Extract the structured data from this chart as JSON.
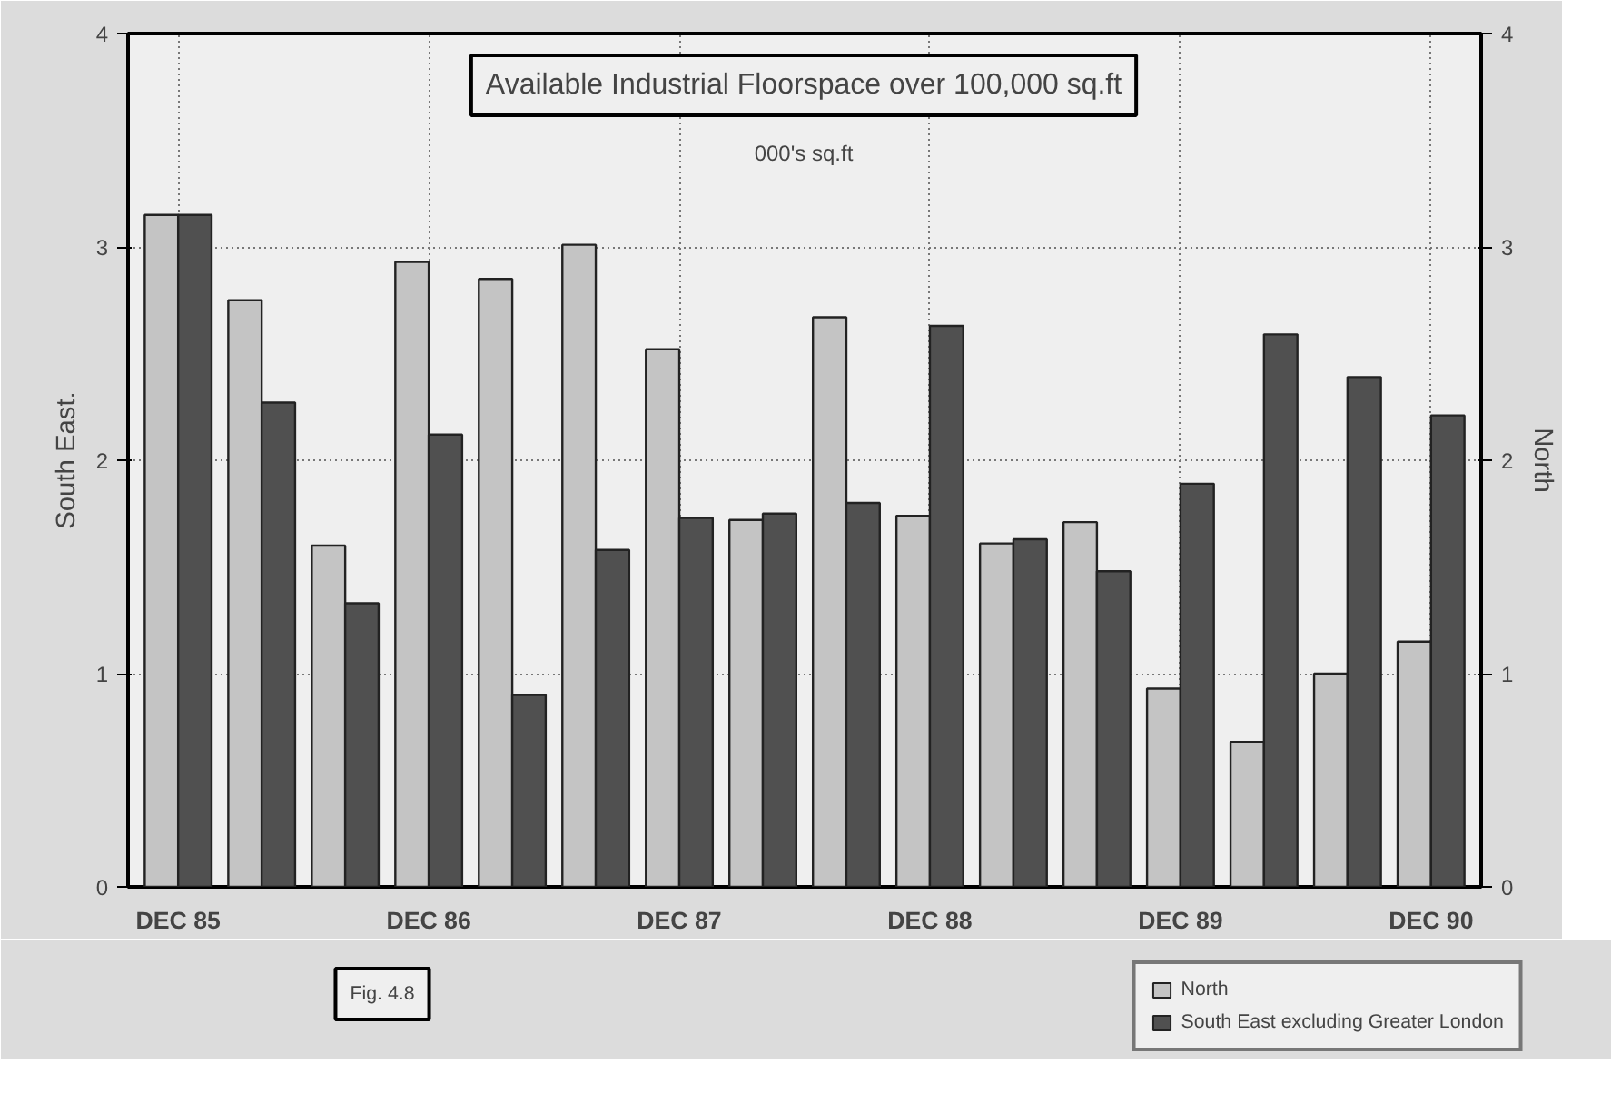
{
  "chart_data": {
    "type": "bar",
    "title": "Available Industrial Floorspace over 100,000 sq.ft",
    "subtitle": "000's sq.ft",
    "ylabel": "South East.",
    "y2label": "North",
    "categories": [
      "DEC 85",
      null,
      null,
      "DEC 86",
      null,
      null,
      "DEC 87",
      null,
      null,
      "DEC 88",
      null,
      null,
      "DEC 89",
      null,
      null,
      "DEC 90"
    ],
    "series": [
      {
        "name": "North",
        "color": "#c4c4c4",
        "axis": "y2",
        "values": [
          3.15,
          2.75,
          1.6,
          2.93,
          2.85,
          3.01,
          2.52,
          1.72,
          2.67,
          1.74,
          1.61,
          1.71,
          0.93,
          0.68,
          1.0,
          1.15
        ]
      },
      {
        "name": "South East excluding Greater London",
        "color": "#505050",
        "values": [
          3.15,
          2.27,
          1.33,
          2.12,
          0.9,
          1.58,
          1.73,
          1.75,
          1.8,
          2.63,
          1.63,
          1.48,
          1.89,
          2.59,
          2.39,
          2.21
        ]
      }
    ],
    "ylim": [
      0,
      4
    ],
    "yticks": [
      0,
      1,
      2,
      3,
      4
    ],
    "y2lim": [
      0,
      4
    ],
    "y2ticks": [
      0,
      1,
      2,
      3,
      4
    ],
    "grid": true,
    "legend": "bottom right",
    "annotations": [
      "Fig. 4.8"
    ]
  }
}
